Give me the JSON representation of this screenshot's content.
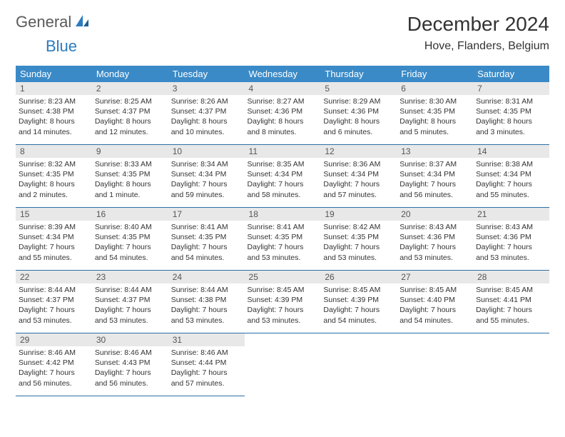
{
  "logo": {
    "part1": "General",
    "part2": "Blue"
  },
  "title": "December 2024",
  "location": "Hove, Flanders, Belgium",
  "colors": {
    "header_bg": "#3a8ac7",
    "header_text": "#ffffff",
    "daynum_bg": "#e8e8e8",
    "cell_border": "#2b6fa8",
    "logo_gray": "#5a5a5a",
    "logo_blue": "#2b7bbf"
  },
  "weekdays": [
    "Sunday",
    "Monday",
    "Tuesday",
    "Wednesday",
    "Thursday",
    "Friday",
    "Saturday"
  ],
  "weeks": [
    [
      {
        "n": "1",
        "sr": "Sunrise: 8:23 AM",
        "ss": "Sunset: 4:38 PM",
        "d1": "Daylight: 8 hours",
        "d2": "and 14 minutes."
      },
      {
        "n": "2",
        "sr": "Sunrise: 8:25 AM",
        "ss": "Sunset: 4:37 PM",
        "d1": "Daylight: 8 hours",
        "d2": "and 12 minutes."
      },
      {
        "n": "3",
        "sr": "Sunrise: 8:26 AM",
        "ss": "Sunset: 4:37 PM",
        "d1": "Daylight: 8 hours",
        "d2": "and 10 minutes."
      },
      {
        "n": "4",
        "sr": "Sunrise: 8:27 AM",
        "ss": "Sunset: 4:36 PM",
        "d1": "Daylight: 8 hours",
        "d2": "and 8 minutes."
      },
      {
        "n": "5",
        "sr": "Sunrise: 8:29 AM",
        "ss": "Sunset: 4:36 PM",
        "d1": "Daylight: 8 hours",
        "d2": "and 6 minutes."
      },
      {
        "n": "6",
        "sr": "Sunrise: 8:30 AM",
        "ss": "Sunset: 4:35 PM",
        "d1": "Daylight: 8 hours",
        "d2": "and 5 minutes."
      },
      {
        "n": "7",
        "sr": "Sunrise: 8:31 AM",
        "ss": "Sunset: 4:35 PM",
        "d1": "Daylight: 8 hours",
        "d2": "and 3 minutes."
      }
    ],
    [
      {
        "n": "8",
        "sr": "Sunrise: 8:32 AM",
        "ss": "Sunset: 4:35 PM",
        "d1": "Daylight: 8 hours",
        "d2": "and 2 minutes."
      },
      {
        "n": "9",
        "sr": "Sunrise: 8:33 AM",
        "ss": "Sunset: 4:35 PM",
        "d1": "Daylight: 8 hours",
        "d2": "and 1 minute."
      },
      {
        "n": "10",
        "sr": "Sunrise: 8:34 AM",
        "ss": "Sunset: 4:34 PM",
        "d1": "Daylight: 7 hours",
        "d2": "and 59 minutes."
      },
      {
        "n": "11",
        "sr": "Sunrise: 8:35 AM",
        "ss": "Sunset: 4:34 PM",
        "d1": "Daylight: 7 hours",
        "d2": "and 58 minutes."
      },
      {
        "n": "12",
        "sr": "Sunrise: 8:36 AM",
        "ss": "Sunset: 4:34 PM",
        "d1": "Daylight: 7 hours",
        "d2": "and 57 minutes."
      },
      {
        "n": "13",
        "sr": "Sunrise: 8:37 AM",
        "ss": "Sunset: 4:34 PM",
        "d1": "Daylight: 7 hours",
        "d2": "and 56 minutes."
      },
      {
        "n": "14",
        "sr": "Sunrise: 8:38 AM",
        "ss": "Sunset: 4:34 PM",
        "d1": "Daylight: 7 hours",
        "d2": "and 55 minutes."
      }
    ],
    [
      {
        "n": "15",
        "sr": "Sunrise: 8:39 AM",
        "ss": "Sunset: 4:34 PM",
        "d1": "Daylight: 7 hours",
        "d2": "and 55 minutes."
      },
      {
        "n": "16",
        "sr": "Sunrise: 8:40 AM",
        "ss": "Sunset: 4:35 PM",
        "d1": "Daylight: 7 hours",
        "d2": "and 54 minutes."
      },
      {
        "n": "17",
        "sr": "Sunrise: 8:41 AM",
        "ss": "Sunset: 4:35 PM",
        "d1": "Daylight: 7 hours",
        "d2": "and 54 minutes."
      },
      {
        "n": "18",
        "sr": "Sunrise: 8:41 AM",
        "ss": "Sunset: 4:35 PM",
        "d1": "Daylight: 7 hours",
        "d2": "and 53 minutes."
      },
      {
        "n": "19",
        "sr": "Sunrise: 8:42 AM",
        "ss": "Sunset: 4:35 PM",
        "d1": "Daylight: 7 hours",
        "d2": "and 53 minutes."
      },
      {
        "n": "20",
        "sr": "Sunrise: 8:43 AM",
        "ss": "Sunset: 4:36 PM",
        "d1": "Daylight: 7 hours",
        "d2": "and 53 minutes."
      },
      {
        "n": "21",
        "sr": "Sunrise: 8:43 AM",
        "ss": "Sunset: 4:36 PM",
        "d1": "Daylight: 7 hours",
        "d2": "and 53 minutes."
      }
    ],
    [
      {
        "n": "22",
        "sr": "Sunrise: 8:44 AM",
        "ss": "Sunset: 4:37 PM",
        "d1": "Daylight: 7 hours",
        "d2": "and 53 minutes."
      },
      {
        "n": "23",
        "sr": "Sunrise: 8:44 AM",
        "ss": "Sunset: 4:37 PM",
        "d1": "Daylight: 7 hours",
        "d2": "and 53 minutes."
      },
      {
        "n": "24",
        "sr": "Sunrise: 8:44 AM",
        "ss": "Sunset: 4:38 PM",
        "d1": "Daylight: 7 hours",
        "d2": "and 53 minutes."
      },
      {
        "n": "25",
        "sr": "Sunrise: 8:45 AM",
        "ss": "Sunset: 4:39 PM",
        "d1": "Daylight: 7 hours",
        "d2": "and 53 minutes."
      },
      {
        "n": "26",
        "sr": "Sunrise: 8:45 AM",
        "ss": "Sunset: 4:39 PM",
        "d1": "Daylight: 7 hours",
        "d2": "and 54 minutes."
      },
      {
        "n": "27",
        "sr": "Sunrise: 8:45 AM",
        "ss": "Sunset: 4:40 PM",
        "d1": "Daylight: 7 hours",
        "d2": "and 54 minutes."
      },
      {
        "n": "28",
        "sr": "Sunrise: 8:45 AM",
        "ss": "Sunset: 4:41 PM",
        "d1": "Daylight: 7 hours",
        "d2": "and 55 minutes."
      }
    ],
    [
      {
        "n": "29",
        "sr": "Sunrise: 8:46 AM",
        "ss": "Sunset: 4:42 PM",
        "d1": "Daylight: 7 hours",
        "d2": "and 56 minutes."
      },
      {
        "n": "30",
        "sr": "Sunrise: 8:46 AM",
        "ss": "Sunset: 4:43 PM",
        "d1": "Daylight: 7 hours",
        "d2": "and 56 minutes."
      },
      {
        "n": "31",
        "sr": "Sunrise: 8:46 AM",
        "ss": "Sunset: 4:44 PM",
        "d1": "Daylight: 7 hours",
        "d2": "and 57 minutes."
      },
      null,
      null,
      null,
      null
    ]
  ]
}
